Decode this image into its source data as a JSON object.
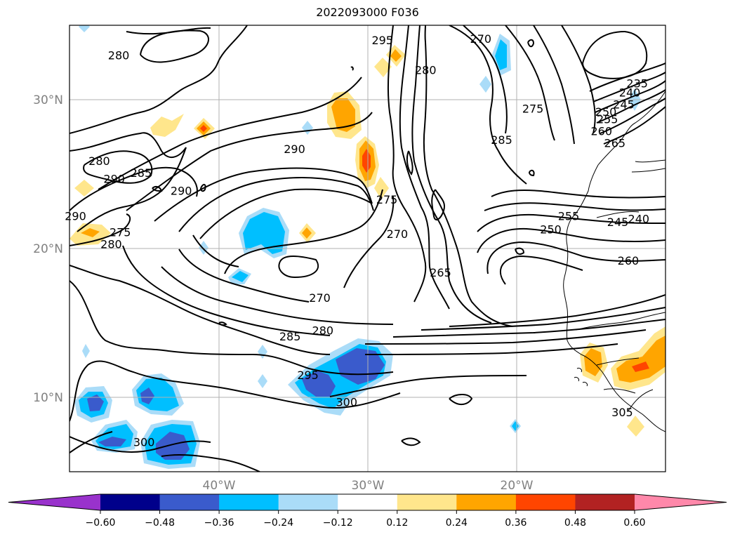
{
  "title": "2022093000 F036",
  "map": {
    "lon_range": [
      -50,
      -10
    ],
    "lat_range": [
      5,
      35
    ],
    "gridlines": true,
    "lat_ticks": [
      {
        "value": 30,
        "label": "30°N"
      },
      {
        "value": 20,
        "label": "20°N"
      },
      {
        "value": 10,
        "label": "10°N"
      }
    ],
    "lon_ticks": [
      {
        "value": -40,
        "label": "40°W"
      },
      {
        "value": -30,
        "label": "30°W"
      },
      {
        "value": -20,
        "label": "20°W"
      }
    ],
    "contour_labels": [
      {
        "text": "280",
        "lon": -46.7,
        "lat": 33.0
      },
      {
        "text": "295",
        "lon": -29.0,
        "lat": 34.0
      },
      {
        "text": "280",
        "lon": -26.1,
        "lat": 32.0
      },
      {
        "text": "270",
        "lon": -22.4,
        "lat": 34.1
      },
      {
        "text": "235",
        "lon": -11.9,
        "lat": 31.1
      },
      {
        "text": "240",
        "lon": -12.4,
        "lat": 30.5
      },
      {
        "text": "245",
        "lon": -12.8,
        "lat": 29.7
      },
      {
        "text": "250",
        "lon": -14.0,
        "lat": 29.2
      },
      {
        "text": "255",
        "lon": -13.9,
        "lat": 28.7
      },
      {
        "text": "260",
        "lon": -14.3,
        "lat": 27.9
      },
      {
        "text": "265",
        "lon": -13.4,
        "lat": 27.1
      },
      {
        "text": "275",
        "lon": -18.9,
        "lat": 29.4
      },
      {
        "text": "285",
        "lon": -21.0,
        "lat": 27.3
      },
      {
        "text": "290",
        "lon": -34.9,
        "lat": 26.7
      },
      {
        "text": "280",
        "lon": -48.0,
        "lat": 25.9
      },
      {
        "text": "290",
        "lon": -47.0,
        "lat": 24.7
      },
      {
        "text": "285",
        "lon": -45.2,
        "lat": 25.1
      },
      {
        "text": "290",
        "lon": -42.5,
        "lat": 23.9
      },
      {
        "text": "290",
        "lon": -49.6,
        "lat": 22.2
      },
      {
        "text": "275",
        "lon": -46.6,
        "lat": 21.1
      },
      {
        "text": "280",
        "lon": -47.2,
        "lat": 20.3
      },
      {
        "text": "275",
        "lon": -28.7,
        "lat": 23.3
      },
      {
        "text": "270",
        "lon": -28.0,
        "lat": 21.0
      },
      {
        "text": "265",
        "lon": -25.1,
        "lat": 18.4
      },
      {
        "text": "255",
        "lon": -16.5,
        "lat": 22.2
      },
      {
        "text": "250",
        "lon": -17.7,
        "lat": 21.3
      },
      {
        "text": "245",
        "lon": -13.2,
        "lat": 21.8
      },
      {
        "text": "240",
        "lon": -11.8,
        "lat": 22.0
      },
      {
        "text": "260",
        "lon": -12.5,
        "lat": 19.2
      },
      {
        "text": "270",
        "lon": -33.2,
        "lat": 16.7
      },
      {
        "text": "280",
        "lon": -33.0,
        "lat": 14.5
      },
      {
        "text": "285",
        "lon": -35.2,
        "lat": 14.1
      },
      {
        "text": "295",
        "lon": -34.0,
        "lat": 11.5
      },
      {
        "text": "300",
        "lon": -31.4,
        "lat": 9.7
      },
      {
        "text": "300",
        "lon": -45.0,
        "lat": 7.0
      },
      {
        "text": "305",
        "lon": -12.9,
        "lat": 9.0
      }
    ]
  },
  "colorbar": {
    "tick_labels": [
      "−0.60",
      "−0.48",
      "−0.36",
      "−0.24",
      "−0.12",
      "0.12",
      "0.24",
      "0.36",
      "0.48",
      "0.60"
    ],
    "colors": [
      "#9932cc",
      "#00008b",
      "#3a5bcc",
      "#00bfff",
      "#aadcf8",
      "#ffffff",
      "#ffe68c",
      "#ffa500",
      "#ff4500",
      "#b22222",
      "#ff88aa"
    ],
    "extend": "both"
  }
}
